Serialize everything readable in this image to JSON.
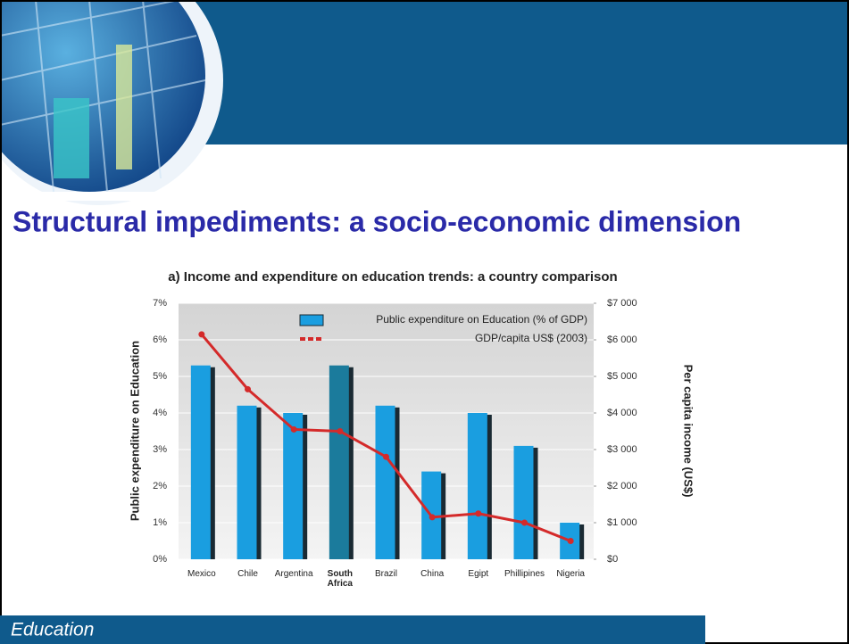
{
  "slide": {
    "title": "Structural impediments: a socio-economic dimension",
    "footer": "Education"
  },
  "chart_data": {
    "type": "bar",
    "title": "a) Income and expenditure on education trends: a country comparison",
    "ylabel": "Public expenditure on Education",
    "y2label": "Per capita income (US$)",
    "categories": [
      "Mexico",
      "Chile",
      "Argentina",
      "South Africa",
      "Brazil",
      "China",
      "Egipt",
      "Phillipines",
      "Nigeria"
    ],
    "highlight": 3,
    "highlight_color": "#1b7b9c",
    "series": [
      {
        "name": "Public expenditure on Education (% of GDP)",
        "type": "bar",
        "color": "#1a9ee0",
        "values": [
          5.3,
          4.2,
          4.0,
          5.3,
          4.2,
          2.4,
          4.0,
          3.1,
          1.0
        ]
      },
      {
        "name": "GDP/capita US$ (2003)",
        "type": "line",
        "axis": "y2",
        "color": "#d42a2a",
        "values": [
          6150,
          4650,
          3550,
          3500,
          2800,
          1150,
          1250,
          1000,
          500
        ]
      }
    ],
    "ylim": [
      0,
      7
    ],
    "yticks": [
      {
        "value": 0,
        "label": "0%"
      },
      {
        "value": 1,
        "label": "1%"
      },
      {
        "value": 2,
        "label": "2%"
      },
      {
        "value": 3,
        "label": "3%"
      },
      {
        "value": 4,
        "label": "4%"
      },
      {
        "value": 5,
        "label": "5%"
      },
      {
        "value": 6,
        "label": "6%"
      },
      {
        "value": 7,
        "label": "7%"
      }
    ],
    "y2lim": [
      0,
      7000
    ],
    "y2ticks": [
      {
        "value": 0,
        "label": "$0"
      },
      {
        "value": 1000,
        "label": "$1 000"
      },
      {
        "value": 2000,
        "label": "$2 000"
      },
      {
        "value": 3000,
        "label": "$3 000"
      },
      {
        "value": 4000,
        "label": "$4 000"
      },
      {
        "value": 5000,
        "label": "$5 000"
      },
      {
        "value": 6000,
        "label": "$6 000"
      },
      {
        "value": 7000,
        "label": "$7 000"
      }
    ],
    "grid": true
  }
}
